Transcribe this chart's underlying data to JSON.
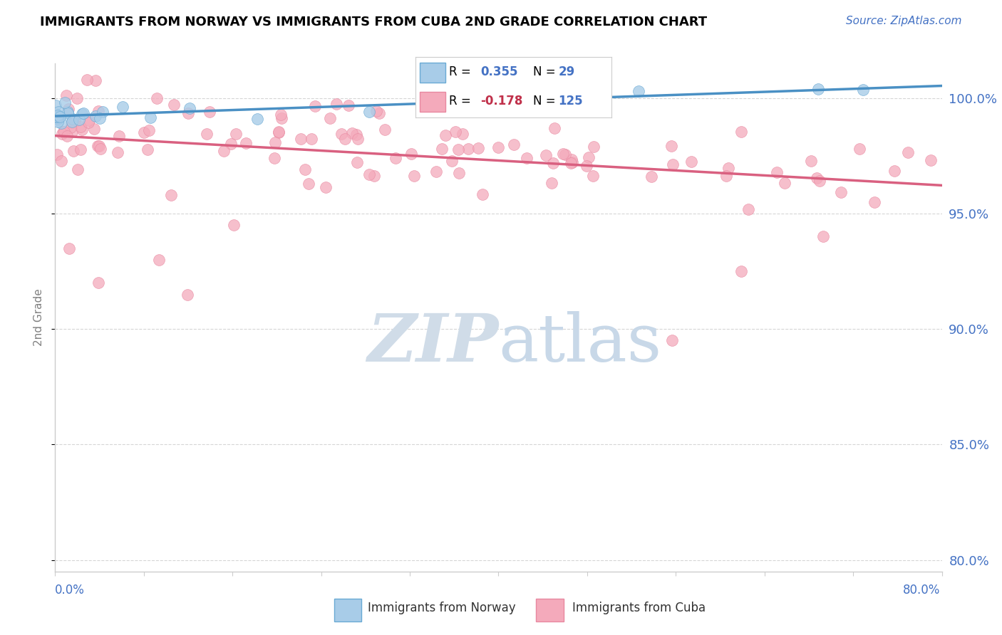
{
  "title": "IMMIGRANTS FROM NORWAY VS IMMIGRANTS FROM CUBA 2ND GRADE CORRELATION CHART",
  "source": "Source: ZipAtlas.com",
  "ylabel": "2nd Grade",
  "xlim": [
    0.0,
    79.0
  ],
  "ylim": [
    79.5,
    101.5
  ],
  "yticks": [
    80.0,
    85.0,
    90.0,
    95.0,
    100.0
  ],
  "ytick_labels": [
    "80.0%",
    "85.0%",
    "90.0%",
    "95.0%",
    "100.0%"
  ],
  "norway_R": 0.355,
  "norway_N": 29,
  "cuba_R": -0.178,
  "cuba_N": 125,
  "norway_color": "#a8cce8",
  "norway_edge_color": "#6aaad4",
  "norway_line_color": "#4a90c4",
  "cuba_color": "#f4aabb",
  "cuba_edge_color": "#e888a0",
  "cuba_line_color": "#d96080",
  "legend_box_color": "#f0f0f0",
  "r_value_color_norway": "#4472c4",
  "r_value_color_cuba": "#c0304a",
  "n_value_color": "#4472c4",
  "watermark_zip_color": "#d0dce8",
  "watermark_atlas_color": "#c8d8e8",
  "axis_label_color": "#4472c4",
  "grid_color": "#cccccc",
  "norway_seed": 42,
  "cuba_seed": 123
}
